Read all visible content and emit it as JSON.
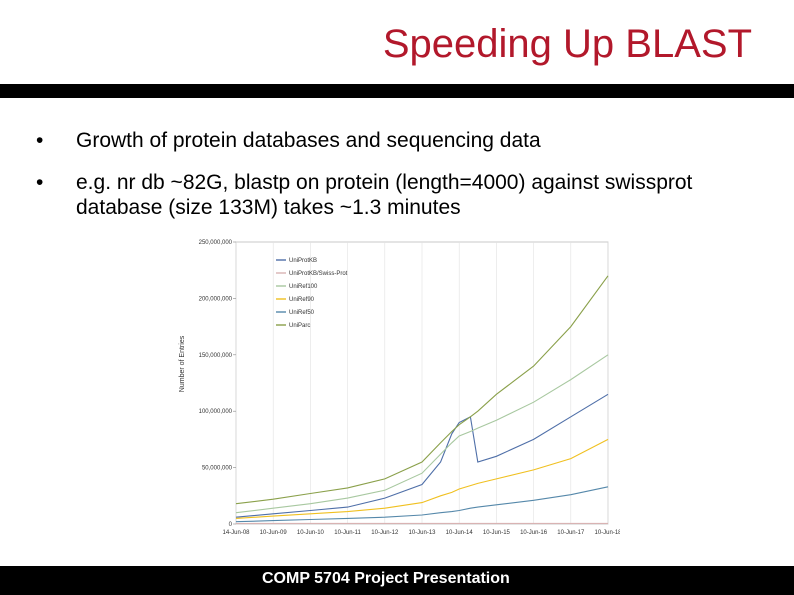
{
  "slide": {
    "title": "Speeding Up BLAST",
    "bullets": [
      {
        "marker": "•",
        "text": "Growth of protein databases and sequencing data"
      },
      {
        "marker": "•",
        "text": "e.g. nr db ~82G, blastp on protein (length=4000) against swissprot database (size 133M) takes ~1.3 minutes"
      }
    ],
    "footer": "COMP 5704 Project Presentation"
  },
  "chart_data": {
    "type": "line",
    "ylabel": "Number of Entries",
    "xlabel": "",
    "ylim": [
      0,
      250000000
    ],
    "y_ticks": [
      0,
      50000000,
      100000000,
      150000000,
      200000000,
      250000000
    ],
    "y_tick_labels": [
      "0",
      "50,000,000",
      "100,000,000",
      "150,000,000",
      "200,000,000",
      "250,000,000"
    ],
    "x_tick_labels": [
      "14-Jun-08",
      "10-Jun-09",
      "10-Jun-10",
      "10-Jun-11",
      "10-Jun-12",
      "10-Jun-13",
      "10-Jun-14",
      "10-Jun-15",
      "10-Jun-16",
      "10-Jun-17",
      "10-Jun-18"
    ],
    "x": [
      0,
      1,
      2,
      3,
      4,
      5,
      5.5,
      5.8,
      6,
      6.3,
      6.5,
      7,
      8,
      9,
      10
    ],
    "legend_position": "top-left",
    "grid": true,
    "series": [
      {
        "name": "UniProtKB",
        "color": "#4f6fa8",
        "values": [
          6000000,
          9000000,
          12000000,
          15000000,
          23000000,
          35000000,
          55000000,
          80000000,
          90000000,
          95000000,
          55000000,
          60000000,
          75000000,
          95000000,
          115000000
        ]
      },
      {
        "name": "UniProtKB/Swiss-Prot",
        "color": "#d9b3b3",
        "values": [
          400000,
          500000,
          520000,
          530000,
          535000,
          540000,
          545000,
          547000,
          548000,
          550000,
          550000,
          552000,
          554000,
          556000,
          558000
        ]
      },
      {
        "name": "UniRef100",
        "color": "#a8c8a0",
        "values": [
          10000000,
          14000000,
          18000000,
          23000000,
          30000000,
          45000000,
          62000000,
          72000000,
          78000000,
          82000000,
          85000000,
          92000000,
          108000000,
          128000000,
          150000000
        ]
      },
      {
        "name": "UniRef90",
        "color": "#f0c020",
        "values": [
          5000000,
          7000000,
          9000000,
          11000000,
          14000000,
          19000000,
          25000000,
          28000000,
          31000000,
          34000000,
          36000000,
          40000000,
          48000000,
          58000000,
          75000000
        ]
      },
      {
        "name": "UniRef50",
        "color": "#5588aa",
        "values": [
          2000000,
          3000000,
          4000000,
          5000000,
          6000000,
          8000000,
          10000000,
          11000000,
          12000000,
          14000000,
          15000000,
          17000000,
          21000000,
          26000000,
          33000000
        ]
      },
      {
        "name": "UniParc",
        "color": "#8aa04a",
        "values": [
          18000000,
          22000000,
          27000000,
          32000000,
          40000000,
          55000000,
          72000000,
          82000000,
          88000000,
          95000000,
          100000000,
          115000000,
          140000000,
          175000000,
          220000000
        ]
      }
    ]
  }
}
